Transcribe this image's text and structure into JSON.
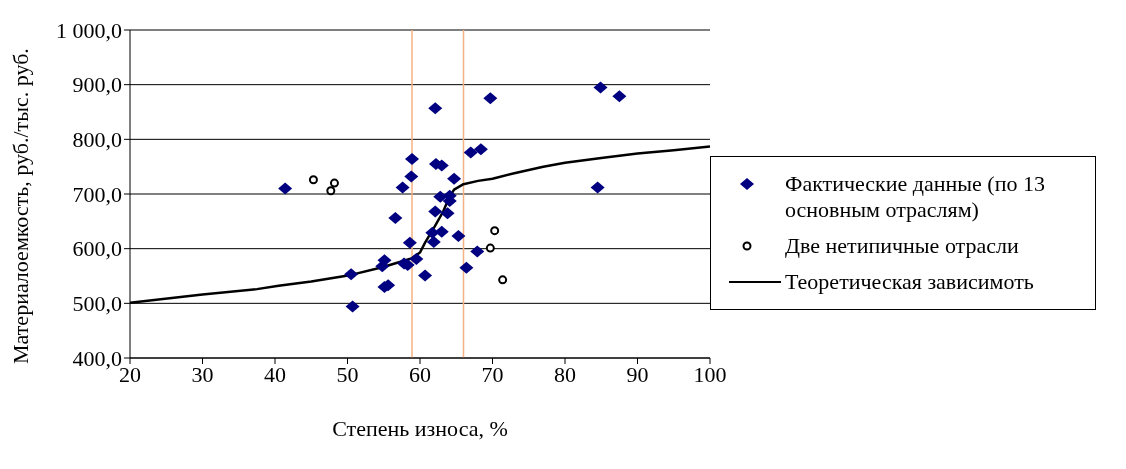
{
  "chart_data": {
    "type": "scatter",
    "xlabel": "Степень износа, %",
    "ylabel": "Материалоемкость, руб./тыс. руб.",
    "xlim": [
      20,
      100
    ],
    "xticks": [
      20,
      30,
      40,
      50,
      60,
      70,
      80,
      90,
      100
    ],
    "ylim": [
      400,
      1000
    ],
    "yticks": [
      {
        "value": 400,
        "label": "400,0"
      },
      {
        "value": 500,
        "label": "500,0"
      },
      {
        "value": 600,
        "label": "600,0"
      },
      {
        "value": 700,
        "label": "700,0"
      },
      {
        "value": 800,
        "label": "800,0"
      },
      {
        "value": 900,
        "label": "900,0"
      },
      {
        "value": 1000,
        "label": "1 000,0"
      }
    ],
    "grid": "y",
    "legend": "right",
    "ref_lines": [
      {
        "axis": "x",
        "value": 58.9,
        "color": "#f4b183"
      },
      {
        "axis": "x",
        "value": 66,
        "color": "#f4b183"
      }
    ],
    "series": [
      {
        "name": "Фактические данные (по 13 основным отраслям)",
        "type": "scatter",
        "marker": "diamond",
        "color": "#000080",
        "x": [
          41.4,
          62.1,
          69.7,
          58.9,
          67.0,
          68.4,
          62.2,
          63.0,
          58.8,
          64.7,
          57.6,
          62.8,
          64.1,
          64.1,
          62.1,
          63.8,
          56.6,
          61.7,
          63.0,
          61.9,
          58.6,
          65.3,
          67.9,
          55.1,
          59.5,
          54.8,
          57.8,
          58.3,
          50.5,
          60.7,
          66.4,
          55.1,
          55.6,
          50.7,
          84.9,
          87.5,
          84.5
        ],
        "values": [
          710,
          857,
          875,
          764,
          776,
          782,
          755,
          752,
          732,
          728,
          712,
          695,
          697,
          687,
          668,
          665,
          656,
          629,
          631,
          612,
          611,
          623,
          595,
          579,
          581,
          568,
          573,
          570,
          553,
          551,
          565,
          530,
          533,
          494,
          895,
          879,
          712
        ]
      },
      {
        "name": "Две  нетипичные отрасли",
        "type": "scatter",
        "marker": "circle",
        "color": "#000000",
        "x": [
          45.3,
          48.2,
          47.7,
          70.3,
          69.7,
          71.4
        ],
        "values": [
          726,
          720,
          706,
          633,
          601,
          543
        ]
      },
      {
        "name": "Теоретическая зависимоть",
        "type": "line",
        "marker": "none",
        "line_style": "solid",
        "color": "#000000",
        "x": [
          20,
          30,
          37.5,
          40.5,
          45,
          50.5,
          54.8,
          58.8,
          60,
          60.7,
          62,
          63.2,
          64,
          64.7,
          66,
          68,
          70,
          73,
          77,
          80,
          85,
          90,
          95,
          100
        ],
        "values": [
          501,
          516,
          526,
          532,
          540,
          552,
          566,
          582,
          593,
          611,
          640,
          668,
          693,
          708,
          718,
          724,
          728,
          738,
          750,
          757,
          766,
          774,
          780,
          787
        ]
      }
    ]
  }
}
